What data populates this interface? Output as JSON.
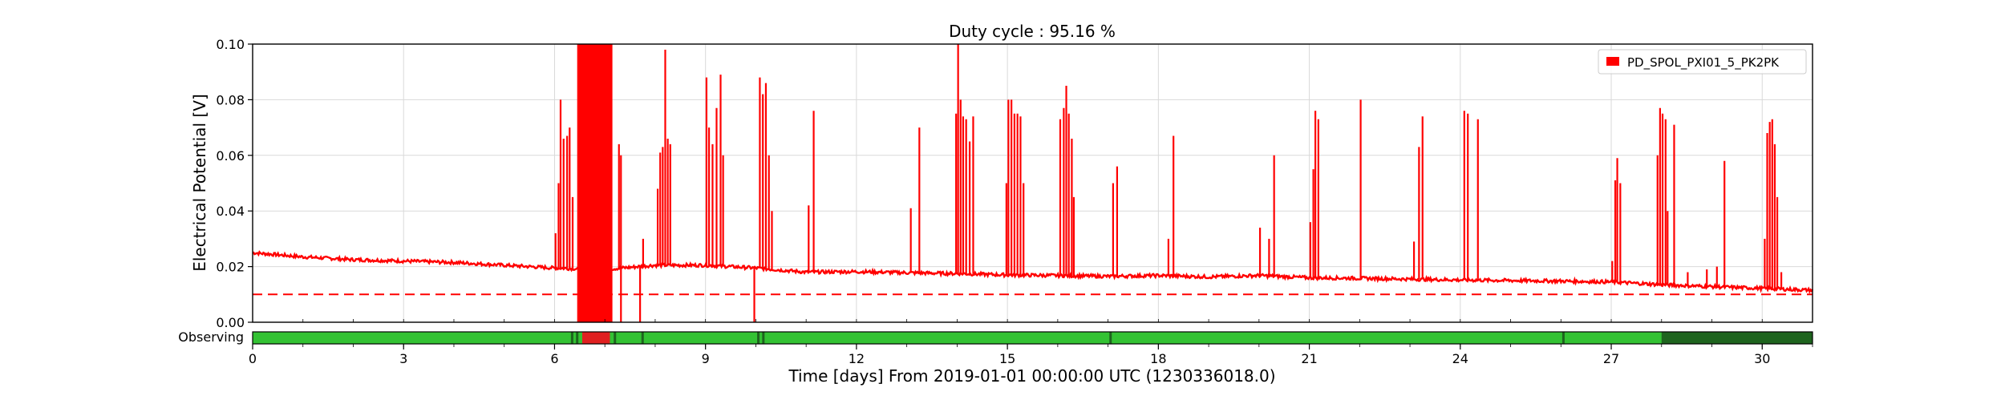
{
  "chart_data": {
    "type": "line",
    "title": "Duty cycle : 95.16 %",
    "xlabel": "Time [days] From 2019-01-01 00:00:00 UTC (1230336018.0)",
    "ylabel": "Electrical Potential [V]",
    "xlim": [
      0,
      31
    ],
    "ylim": [
      0,
      0.1
    ],
    "xticks": [
      "0",
      "3",
      "6",
      "9",
      "12",
      "15",
      "18",
      "21",
      "24",
      "27",
      "30"
    ],
    "yticks": [
      "0.00",
      "0.02",
      "0.04",
      "0.06",
      "0.08",
      "0.10"
    ],
    "grid": true,
    "legend_position": "top-right",
    "series": [
      {
        "name": "PD_SPOL_PXI01_5_PK2PK",
        "color": "#ff0000",
        "baseline": [
          [
            0,
            0.025
          ],
          [
            1,
            0.0235
          ],
          [
            2,
            0.0225
          ],
          [
            3,
            0.022
          ],
          [
            4,
            0.0215
          ],
          [
            5,
            0.0205
          ],
          [
            6,
            0.0195
          ],
          [
            7,
            0.019
          ],
          [
            8,
            0.0205
          ],
          [
            9,
            0.0205
          ],
          [
            10,
            0.0195
          ],
          [
            11,
            0.018
          ],
          [
            12,
            0.0182
          ],
          [
            13,
            0.0178
          ],
          [
            14,
            0.0175
          ],
          [
            15,
            0.017
          ],
          [
            16,
            0.0168
          ],
          [
            17,
            0.0165
          ],
          [
            18,
            0.0168
          ],
          [
            19,
            0.0163
          ],
          [
            20,
            0.0168
          ],
          [
            21,
            0.016
          ],
          [
            22,
            0.0158
          ],
          [
            23,
            0.0155
          ],
          [
            24,
            0.0152
          ],
          [
            25,
            0.015
          ],
          [
            26,
            0.0148
          ],
          [
            27,
            0.0145
          ],
          [
            28,
            0.0135
          ],
          [
            29,
            0.0128
          ],
          [
            30,
            0.0122
          ],
          [
            31,
            0.0115
          ]
        ],
        "spikes": [
          [
            6.02,
            0.032
          ],
          [
            6.08,
            0.05
          ],
          [
            6.12,
            0.08
          ],
          [
            6.18,
            0.066
          ],
          [
            6.25,
            0.067
          ],
          [
            6.3,
            0.07
          ],
          [
            6.36,
            0.045
          ],
          [
            7.28,
            0.064
          ],
          [
            7.32,
            0.06
          ],
          [
            7.76,
            0.03
          ],
          [
            8.05,
            0.048
          ],
          [
            8.1,
            0.061
          ],
          [
            8.15,
            0.063
          ],
          [
            8.2,
            0.098
          ],
          [
            8.25,
            0.066
          ],
          [
            8.3,
            0.064
          ],
          [
            9.02,
            0.088
          ],
          [
            9.07,
            0.07
          ],
          [
            9.14,
            0.064
          ],
          [
            9.22,
            0.077
          ],
          [
            9.3,
            0.089
          ],
          [
            9.35,
            0.06
          ],
          [
            10.08,
            0.088
          ],
          [
            10.14,
            0.082
          ],
          [
            10.2,
            0.086
          ],
          [
            10.26,
            0.06
          ],
          [
            10.32,
            0.04
          ],
          [
            11.05,
            0.042
          ],
          [
            11.15,
            0.076
          ],
          [
            13.08,
            0.041
          ],
          [
            13.25,
            0.07
          ],
          [
            13.98,
            0.075
          ],
          [
            14.02,
            0.1
          ],
          [
            14.07,
            0.08
          ],
          [
            14.12,
            0.074
          ],
          [
            14.18,
            0.073
          ],
          [
            14.25,
            0.065
          ],
          [
            14.32,
            0.074
          ],
          [
            14.98,
            0.05
          ],
          [
            15.02,
            0.08
          ],
          [
            15.08,
            0.08
          ],
          [
            15.14,
            0.075
          ],
          [
            15.2,
            0.075
          ],
          [
            15.26,
            0.074
          ],
          [
            15.32,
            0.05
          ],
          [
            16.05,
            0.073
          ],
          [
            16.12,
            0.077
          ],
          [
            16.17,
            0.085
          ],
          [
            16.22,
            0.075
          ],
          [
            16.28,
            0.066
          ],
          [
            16.32,
            0.045
          ],
          [
            17.1,
            0.05
          ],
          [
            17.18,
            0.056
          ],
          [
            18.2,
            0.03
          ],
          [
            18.3,
            0.067
          ],
          [
            20.02,
            0.034
          ],
          [
            20.2,
            0.03
          ],
          [
            20.3,
            0.06
          ],
          [
            21.02,
            0.036
          ],
          [
            21.08,
            0.055
          ],
          [
            21.12,
            0.076
          ],
          [
            21.18,
            0.073
          ],
          [
            22.02,
            0.08
          ],
          [
            23.08,
            0.029
          ],
          [
            23.18,
            0.063
          ],
          [
            23.25,
            0.074
          ],
          [
            24.08,
            0.076
          ],
          [
            24.15,
            0.075
          ],
          [
            24.35,
            0.073
          ],
          [
            27.02,
            0.022
          ],
          [
            27.08,
            0.051
          ],
          [
            27.12,
            0.059
          ],
          [
            27.18,
            0.05
          ],
          [
            27.92,
            0.06
          ],
          [
            27.97,
            0.077
          ],
          [
            28.02,
            0.075
          ],
          [
            28.08,
            0.073
          ],
          [
            28.12,
            0.04
          ],
          [
            28.25,
            0.071
          ],
          [
            28.52,
            0.018
          ],
          [
            28.9,
            0.019
          ],
          [
            29.1,
            0.02
          ],
          [
            29.25,
            0.058
          ],
          [
            30.05,
            0.03
          ],
          [
            30.1,
            0.068
          ],
          [
            30.15,
            0.072
          ],
          [
            30.2,
            0.073
          ],
          [
            30.25,
            0.064
          ],
          [
            30.3,
            0.045
          ],
          [
            30.38,
            0.018
          ]
        ],
        "saturated_interval": [
          6.45,
          7.15
        ],
        "dropouts": [
          [
            7.32,
            0.0
          ],
          [
            7.7,
            0.0
          ],
          [
            9.97,
            0.0
          ]
        ]
      },
      {
        "style": "dashed",
        "color": "#ff0000",
        "y": 0.01
      }
    ],
    "state_bar": {
      "label": "Observing",
      "color_on": "#33c233",
      "color_dark": "#1e641e",
      "color_off": "#e02020",
      "off_intervals": [
        [
          6.55,
          7.1
        ]
      ],
      "dark_intervals": [
        [
          28.0,
          31.0
        ]
      ],
      "dark_markers": [
        6.35,
        6.45,
        7.2,
        7.75,
        10.05,
        10.15,
        17.05,
        26.05,
        28.8,
        29.35,
        30.05,
        30.25
      ]
    }
  }
}
